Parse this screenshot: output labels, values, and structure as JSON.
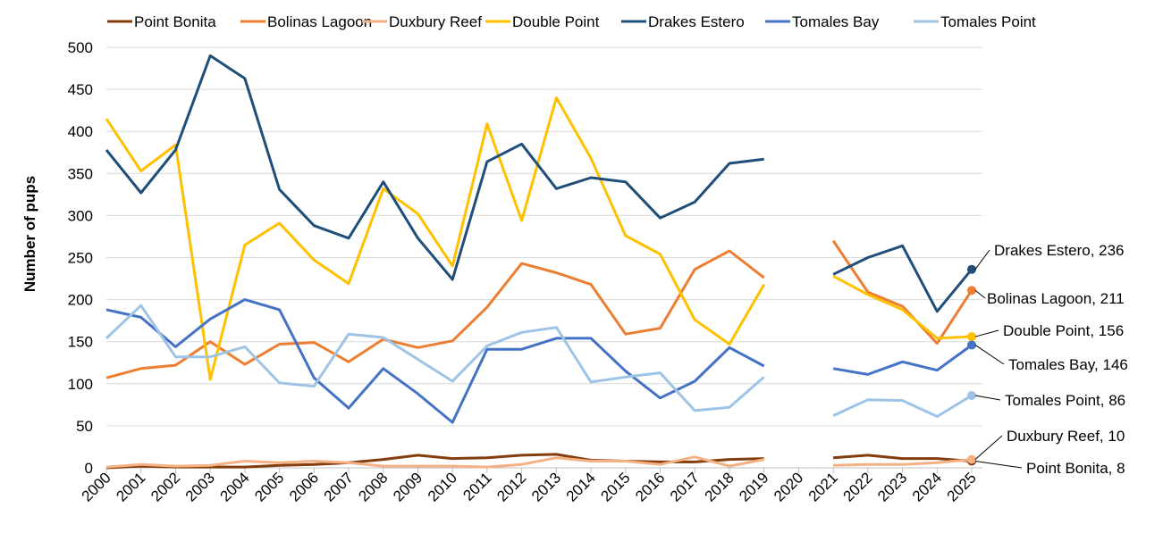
{
  "chart_data": {
    "type": "line",
    "ylabel": "Number of pups",
    "xlabel": "",
    "ylim": [
      0,
      500
    ],
    "yticks": [
      0,
      50,
      100,
      150,
      200,
      250,
      300,
      350,
      400,
      450,
      500
    ],
    "grid": true,
    "legend": "top",
    "categories": [
      "2000",
      "2001",
      "2002",
      "2003",
      "2004",
      "2005",
      "2006",
      "2007",
      "2008",
      "2009",
      "2010",
      "2011",
      "2012",
      "2013",
      "2014",
      "2015",
      "2016",
      "2017",
      "2018",
      "2019",
      "2020",
      "2021",
      "2022",
      "2023",
      "2024",
      "2025"
    ],
    "series": [
      {
        "name": "Point Bonita",
        "color": "#843C0C",
        "values": [
          0,
          2,
          1,
          1,
          1,
          3,
          4,
          6,
          10,
          15,
          11,
          12,
          15,
          16,
          9,
          8,
          7,
          7,
          10,
          11,
          null,
          12,
          15,
          11,
          11,
          8
        ],
        "end_label": "Point Bonita,  8"
      },
      {
        "name": "Bolinas Lagoon",
        "color": "#ED7D31",
        "values": [
          107,
          118,
          122,
          150,
          123,
          147,
          149,
          126,
          153,
          143,
          151,
          191,
          243,
          232,
          218,
          159,
          166,
          236,
          258,
          226,
          null,
          270,
          209,
          192,
          148,
          211
        ],
        "end_label": "Bolinas Lagoon,  211"
      },
      {
        "name": "Duxbury Reef",
        "color": "#F4B183",
        "values": [
          1,
          4,
          2,
          3,
          8,
          6,
          8,
          6,
          2,
          2,
          2,
          1,
          4,
          12,
          8,
          8,
          4,
          13,
          2,
          10,
          null,
          3,
          4,
          4,
          6,
          10
        ],
        "end_label": "Duxbury Reef,  10"
      },
      {
        "name": "Double Point",
        "color": "#FFC000",
        "values": [
          415,
          353,
          384,
          105,
          265,
          291,
          247,
          219,
          332,
          302,
          240,
          409,
          294,
          440,
          368,
          276,
          254,
          176,
          147,
          218,
          null,
          228,
          206,
          188,
          154,
          156
        ],
        "end_label": "Double Point,  156"
      },
      {
        "name": "Drakes Estero",
        "color": "#1F4E79",
        "values": [
          378,
          327,
          378,
          490,
          463,
          331,
          288,
          273,
          340,
          273,
          224,
          364,
          385,
          332,
          345,
          340,
          297,
          316,
          362,
          367,
          null,
          230,
          250,
          264,
          186,
          236
        ],
        "end_label": "Drakes Estero,  236"
      },
      {
        "name": "Tomales Bay",
        "color": "#4472C4",
        "values": [
          188,
          179,
          144,
          177,
          200,
          188,
          107,
          71,
          118,
          88,
          54,
          141,
          141,
          154,
          154,
          115,
          83,
          103,
          143,
          121,
          null,
          118,
          111,
          126,
          116,
          146
        ],
        "end_label": "Tomales Bay, 146"
      },
      {
        "name": "Tomales Point",
        "color": "#9DC3E6",
        "values": [
          154,
          193,
          132,
          132,
          144,
          101,
          97,
          159,
          155,
          129,
          103,
          145,
          161,
          167,
          102,
          108,
          113,
          68,
          72,
          108,
          null,
          62,
          81,
          80,
          61,
          86
        ],
        "end_label": "Tomales Point,  86"
      }
    ]
  }
}
